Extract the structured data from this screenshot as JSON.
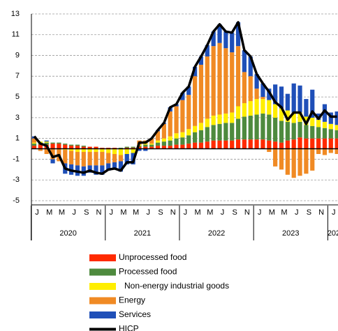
{
  "chart_data": {
    "type": "bar",
    "categories": [
      "J",
      null,
      "M",
      null,
      "M",
      null,
      "J",
      null,
      "S",
      null,
      "N",
      null,
      "J",
      null,
      "M",
      null,
      "M",
      null,
      "J",
      null,
      "S",
      null,
      "N",
      null,
      "J",
      null,
      "M",
      null,
      "M",
      null,
      "J",
      null,
      "S",
      null,
      "N",
      null,
      "J",
      null,
      "M",
      null,
      "M",
      null,
      "J",
      null,
      "S",
      null,
      "N",
      null,
      "J",
      null
    ],
    "year_labels": [
      "2020",
      "2021",
      "2022",
      "2023",
      "202"
    ],
    "ylim": [
      -5,
      13
    ],
    "yticks": [
      -5,
      -3,
      -1,
      1,
      3,
      5,
      7,
      9,
      11,
      13
    ],
    "grid": true,
    "series": [
      {
        "name": "Unprocessed food",
        "color": "#ff2a00",
        "values": [
          0.3,
          0.4,
          0.4,
          0.5,
          0.5,
          0.4,
          0.3,
          0.3,
          0.2,
          0.2,
          0.2,
          0.1,
          0.1,
          0.1,
          0.0,
          0.1,
          0.1,
          0.2,
          0.2,
          0.2,
          0.3,
          0.3,
          0.3,
          0.4,
          0.4,
          0.5,
          0.6,
          0.6,
          0.7,
          0.8,
          0.8,
          0.8,
          0.8,
          0.9,
          0.9,
          0.9,
          0.9,
          0.9,
          0.8,
          0.7,
          0.6,
          0.8,
          0.9,
          1.1,
          1.0,
          1.0,
          1.0,
          1.0,
          1.0,
          1.0
        ]
      },
      {
        "name": "Processed food",
        "color": "#4e8a3e",
        "values": [
          0.2,
          0.2,
          0.2,
          0.1,
          0.1,
          0.1,
          0.1,
          0.1,
          0.1,
          0.0,
          0.0,
          0.0,
          0.0,
          0.0,
          0.1,
          0.1,
          0.1,
          0.1,
          0.2,
          0.2,
          0.3,
          0.4,
          0.5,
          0.6,
          0.7,
          0.8,
          1.0,
          1.2,
          1.4,
          1.5,
          1.6,
          1.7,
          1.7,
          2.0,
          2.2,
          2.3,
          2.4,
          2.5,
          2.5,
          2.3,
          2.1,
          1.8,
          1.6,
          1.5,
          1.3,
          1.2,
          1.1,
          1.0,
          0.9,
          0.8
        ]
      },
      {
        "name": "Non-energy industrial goods",
        "color": "#ffee00",
        "values": [
          0.1,
          0.1,
          0.1,
          0.0,
          0.0,
          -0.1,
          -0.2,
          -0.3,
          -0.3,
          -0.3,
          -0.3,
          -0.3,
          -0.4,
          -0.5,
          -0.6,
          -0.5,
          -0.4,
          0.1,
          0.1,
          0.1,
          0.2,
          0.3,
          0.4,
          0.5,
          0.5,
          0.6,
          0.6,
          0.7,
          0.8,
          0.9,
          0.9,
          0.9,
          1.0,
          1.2,
          1.3,
          1.4,
          1.5,
          1.4,
          1.4,
          1.3,
          1.2,
          1.1,
          1.0,
          0.9,
          0.8,
          0.8,
          0.7,
          0.6,
          0.5,
          0.5
        ]
      },
      {
        "name": "Energy",
        "color": "#f08a24",
        "values": [
          0.4,
          -0.2,
          -0.5,
          -1.0,
          -1.2,
          -1.3,
          -1.3,
          -1.3,
          -1.4,
          -1.3,
          -1.3,
          -1.3,
          -1.0,
          -0.8,
          -0.6,
          0.0,
          0.0,
          0.4,
          0.3,
          0.5,
          0.9,
          1.4,
          2.4,
          2.6,
          3.1,
          3.3,
          4.8,
          5.6,
          6.0,
          6.7,
          6.9,
          6.3,
          5.8,
          5.8,
          3.0,
          2.4,
          1.0,
          0.2,
          -0.3,
          -1.7,
          -2.0,
          -2.5,
          -2.8,
          -2.6,
          -2.4,
          -2.1,
          -0.5,
          -0.6,
          -0.4,
          -0.5
        ]
      },
      {
        "name": "Services",
        "color": "#1f4fb8",
        "values": [
          0.2,
          0.0,
          0.1,
          -0.4,
          0.0,
          -1.0,
          -1.0,
          -1.0,
          -0.9,
          -0.7,
          -0.9,
          -0.9,
          -0.7,
          -0.7,
          -1.0,
          -1.0,
          -1.1,
          -0.2,
          -0.2,
          0.0,
          0.1,
          0.1,
          0.4,
          0.2,
          0.7,
          0.8,
          0.9,
          0.8,
          1.1,
          1.4,
          1.8,
          1.6,
          1.9,
          2.3,
          2.1,
          1.9,
          1.4,
          1.3,
          1.1,
          1.9,
          2.1,
          1.6,
          2.8,
          2.6,
          1.7,
          2.7,
          0.6,
          1.7,
          1.1,
          1.3
        ]
      },
      {
        "name": "HICP",
        "color": "#000000",
        "type": "line",
        "values": [
          1.2,
          0.5,
          0.3,
          -0.8,
          -0.6,
          -1.9,
          -2.1,
          -2.2,
          -2.3,
          -2.1,
          -2.3,
          -2.4,
          -2.0,
          -1.9,
          -2.1,
          -1.3,
          -1.3,
          0.6,
          0.6,
          1.0,
          1.8,
          2.5,
          4.0,
          4.3,
          5.4,
          6.0,
          7.9,
          8.9,
          10.0,
          11.3,
          12.0,
          11.3,
          11.2,
          12.2,
          9.5,
          8.9,
          7.2,
          6.3,
          5.5,
          4.5,
          4.0,
          2.8,
          3.5,
          3.5,
          2.4,
          3.6,
          2.9,
          3.7,
          3.1,
          3.1
        ]
      }
    ]
  }
}
